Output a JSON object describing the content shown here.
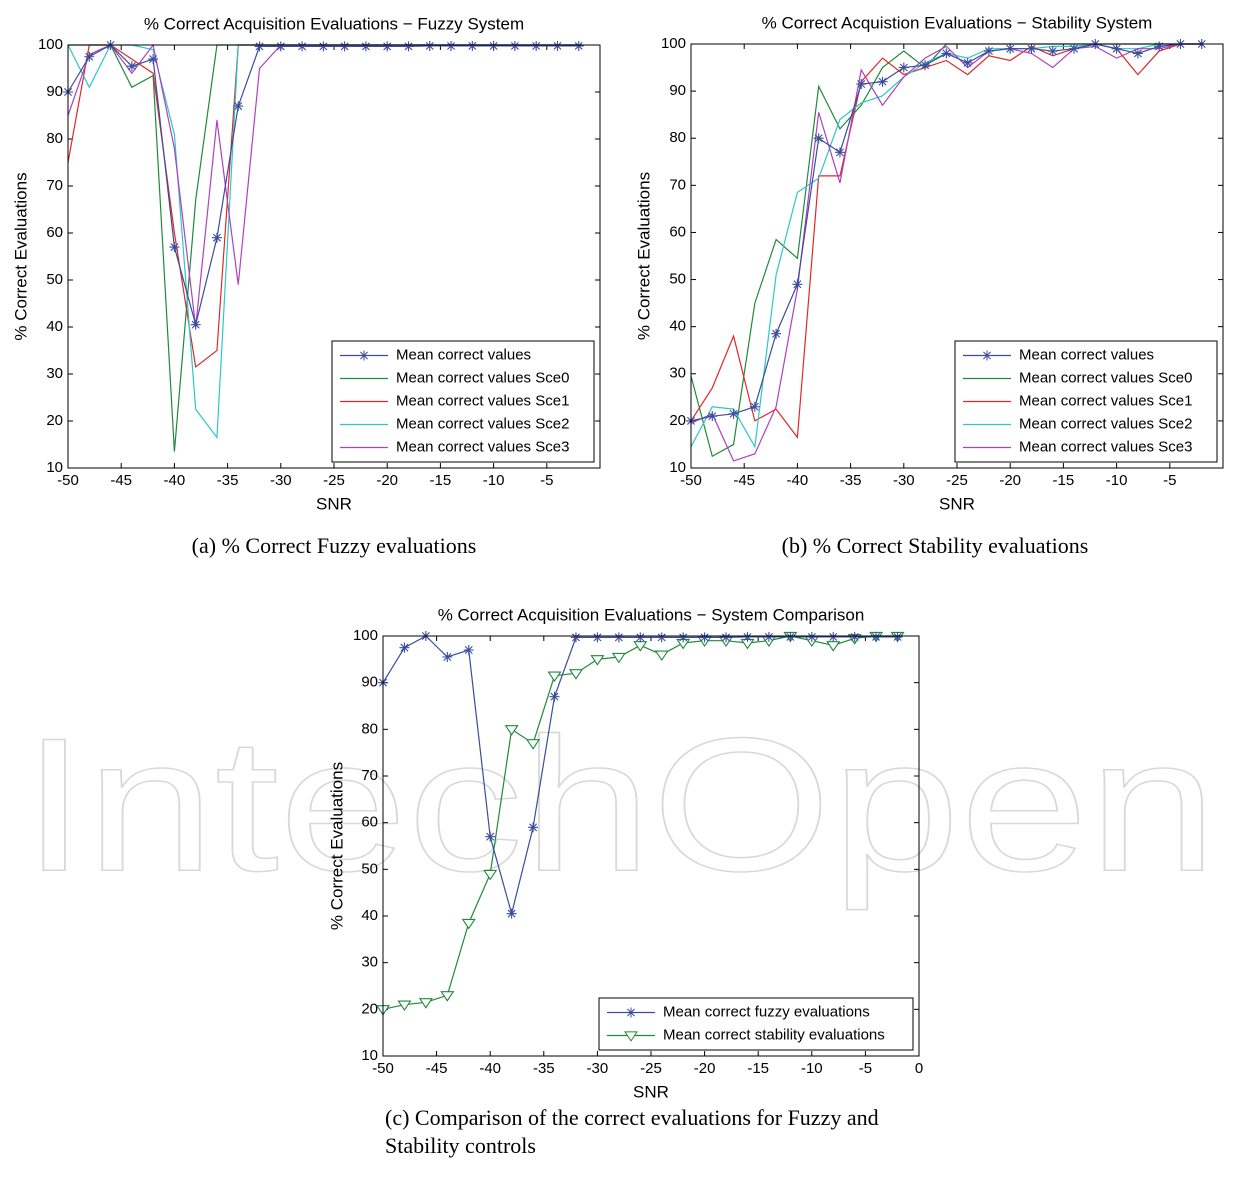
{
  "watermark": "IntechOpen",
  "chart_data": [
    {
      "type": "line",
      "title": "% Correct Acquisition Evaluations − Fuzzy System",
      "xlabel": "SNR",
      "ylabel": "% Correct Evaluations",
      "caption": "(a)  % Correct Fuzzy evaluations",
      "x": [
        -50,
        -48,
        -46,
        -44,
        -42,
        -40,
        -38,
        -36,
        -34,
        -32,
        -30,
        -28,
        -26,
        -24,
        -22,
        -20,
        -18,
        -16,
        -14,
        -12,
        -10,
        -8,
        -6,
        -4,
        -2
      ],
      "xlim": [
        -50,
        0
      ],
      "xticks": [
        -50,
        -45,
        -40,
        -35,
        -30,
        -25,
        -20,
        -15,
        -10,
        -5
      ],
      "ylim": [
        10,
        100
      ],
      "yticks": [
        10,
        20,
        30,
        40,
        50,
        60,
        70,
        80,
        90,
        100
      ],
      "grid": false,
      "legend": "lower right",
      "series": [
        {
          "name": "Mean correct values",
          "color": "#3b4c9e",
          "marker": "star",
          "values": [
            90,
            97.5,
            100,
            95.5,
            97,
            57,
            40.5,
            59,
            87,
            99.7,
            99.7,
            99.7,
            99.7,
            99.7,
            99.7,
            99.7,
            99.7,
            99.8,
            99.8,
            99.8,
            99.8,
            99.8,
            99.8,
            99.8,
            99.8
          ]
        },
        {
          "name": "Mean correct values Sce0",
          "color": "#1f8a3c",
          "marker": "none",
          "values": [
            100,
            100,
            100,
            91,
            93.5,
            13.5,
            67,
            100,
            100,
            100,
            100,
            100,
            100,
            100,
            100,
            100,
            100,
            100,
            100,
            100,
            100,
            100,
            100,
            100,
            100
          ]
        },
        {
          "name": "Mean correct values Sce1",
          "color": "#e02828",
          "marker": "none",
          "values": [
            75,
            100,
            100,
            97,
            94,
            60,
            31.5,
            35,
            100,
            100,
            100,
            100,
            100,
            100,
            100,
            100,
            100,
            100,
            100,
            100,
            100,
            100,
            100,
            100,
            100
          ]
        },
        {
          "name": "Mean correct values Sce2",
          "color": "#2cc7c7",
          "marker": "none",
          "values": [
            100,
            91,
            100,
            100,
            99,
            81,
            22.5,
            16.5,
            100,
            100,
            100,
            100,
            100,
            100,
            100,
            100,
            100,
            100,
            100,
            100,
            100,
            100,
            100,
            100,
            100
          ]
        },
        {
          "name": "Mean correct values Sce3",
          "color": "#b040c0",
          "marker": "none",
          "values": [
            85,
            98,
            100,
            94,
            100,
            78,
            40,
            84,
            49,
            95,
            100,
            100,
            100,
            100,
            100,
            100,
            100,
            100,
            100,
            100,
            100,
            100,
            100,
            100,
            100
          ]
        }
      ]
    },
    {
      "type": "line",
      "title": "% Correct Acquistion Evaluations − Stability System",
      "xlabel": "SNR",
      "ylabel": "% Correct Evaluations",
      "caption": "(b)  % Correct Stability evaluations",
      "x": [
        -50,
        -48,
        -46,
        -44,
        -42,
        -40,
        -38,
        -36,
        -34,
        -32,
        -30,
        -28,
        -26,
        -24,
        -22,
        -20,
        -18,
        -16,
        -14,
        -12,
        -10,
        -8,
        -6,
        -4,
        -2
      ],
      "xlim": [
        -50,
        0
      ],
      "xticks": [
        -50,
        -45,
        -40,
        -35,
        -30,
        -25,
        -20,
        -15,
        -10,
        -5
      ],
      "ylim": [
        10,
        100
      ],
      "yticks": [
        10,
        20,
        30,
        40,
        50,
        60,
        70,
        80,
        90,
        100
      ],
      "grid": false,
      "legend": "lower right",
      "series": [
        {
          "name": "Mean correct values",
          "color": "#3b4c9e",
          "marker": "star",
          "values": [
            20,
            21,
            21.5,
            23,
            38.5,
            49,
            80,
            77,
            91.5,
            92,
            95,
            95.5,
            98,
            96,
            98.5,
            99,
            99,
            98.5,
            99,
            100,
            99,
            98,
            99.5,
            100,
            100
          ]
        },
        {
          "name": "Mean correct values Sce0",
          "color": "#1f8a3c",
          "marker": "none",
          "values": [
            29.5,
            12.5,
            15,
            45,
            58.5,
            54.5,
            91,
            82,
            87,
            95,
            98.5,
            95,
            100,
            100,
            100,
            100,
            100,
            100,
            100,
            100,
            100,
            100,
            100,
            100,
            100
          ]
        },
        {
          "name": "Mean correct values Sce1",
          "color": "#e02828",
          "marker": "none",
          "values": [
            20,
            27,
            38,
            20,
            22.5,
            16.5,
            72,
            72,
            92,
            97,
            93.5,
            95,
            96.5,
            93.5,
            97.5,
            96.5,
            99.5,
            97.5,
            99,
            100,
            99,
            93.5,
            98.5,
            100,
            100
          ]
        },
        {
          "name": "Mean correct values Sce2",
          "color": "#2cc7c7",
          "marker": "none",
          "values": [
            14.5,
            23,
            22.5,
            14.5,
            51,
            68.5,
            71.5,
            84,
            87.5,
            89,
            93,
            96,
            98,
            97,
            99,
            99,
            99,
            99.5,
            99.5,
            100,
            99,
            99,
            100,
            100,
            100
          ]
        },
        {
          "name": "Mean correct values Sce3",
          "color": "#b040c0",
          "marker": "none",
          "values": [
            19.5,
            21.5,
            11.5,
            13,
            23,
            48,
            85.5,
            70.5,
            94.5,
            87,
            93,
            97,
            99.5,
            95,
            98.5,
            99,
            98,
            95,
            99,
            99.5,
            97,
            99,
            99,
            100,
            100
          ]
        }
      ]
    },
    {
      "type": "line",
      "title": "% Correct Acquisition Evaluations − System Comparison",
      "xlabel": "SNR",
      "ylabel": "% Correct Evaluations",
      "caption": "(c)  Comparison of the correct evaluations for Fuzzy and Stability controls",
      "x": [
        -50,
        -48,
        -46,
        -44,
        -42,
        -40,
        -38,
        -36,
        -34,
        -32,
        -30,
        -28,
        -26,
        -24,
        -22,
        -20,
        -18,
        -16,
        -14,
        -12,
        -10,
        -8,
        -6,
        -4,
        -2
      ],
      "xlim": [
        -50,
        0
      ],
      "xticks": [
        -50,
        -45,
        -40,
        -35,
        -30,
        -25,
        -20,
        -15,
        -10,
        -5,
        0
      ],
      "ylim": [
        10,
        100
      ],
      "yticks": [
        10,
        20,
        30,
        40,
        50,
        60,
        70,
        80,
        90,
        100
      ],
      "grid": false,
      "legend": "lower right",
      "series": [
        {
          "name": "Mean correct fuzzy evaluations",
          "color": "#3b4c9e",
          "marker": "star",
          "values": [
            90,
            97.5,
            100,
            95.5,
            97,
            57,
            40.5,
            59,
            87,
            99.7,
            99.7,
            99.7,
            99.7,
            99.7,
            99.7,
            99.7,
            99.7,
            99.8,
            99.8,
            99.8,
            99.8,
            99.8,
            99.8,
            99.8,
            99.8
          ]
        },
        {
          "name": "Mean correct stability evaluations",
          "color": "#1f8a3c",
          "marker": "triangle-down",
          "values": [
            20,
            21,
            21.5,
            23,
            38.5,
            49,
            80,
            77,
            91.5,
            92,
            95,
            95.5,
            98,
            96,
            98.5,
            99,
            99,
            98.5,
            99,
            100,
            99,
            98,
            99.5,
            100,
            100
          ]
        }
      ]
    }
  ]
}
